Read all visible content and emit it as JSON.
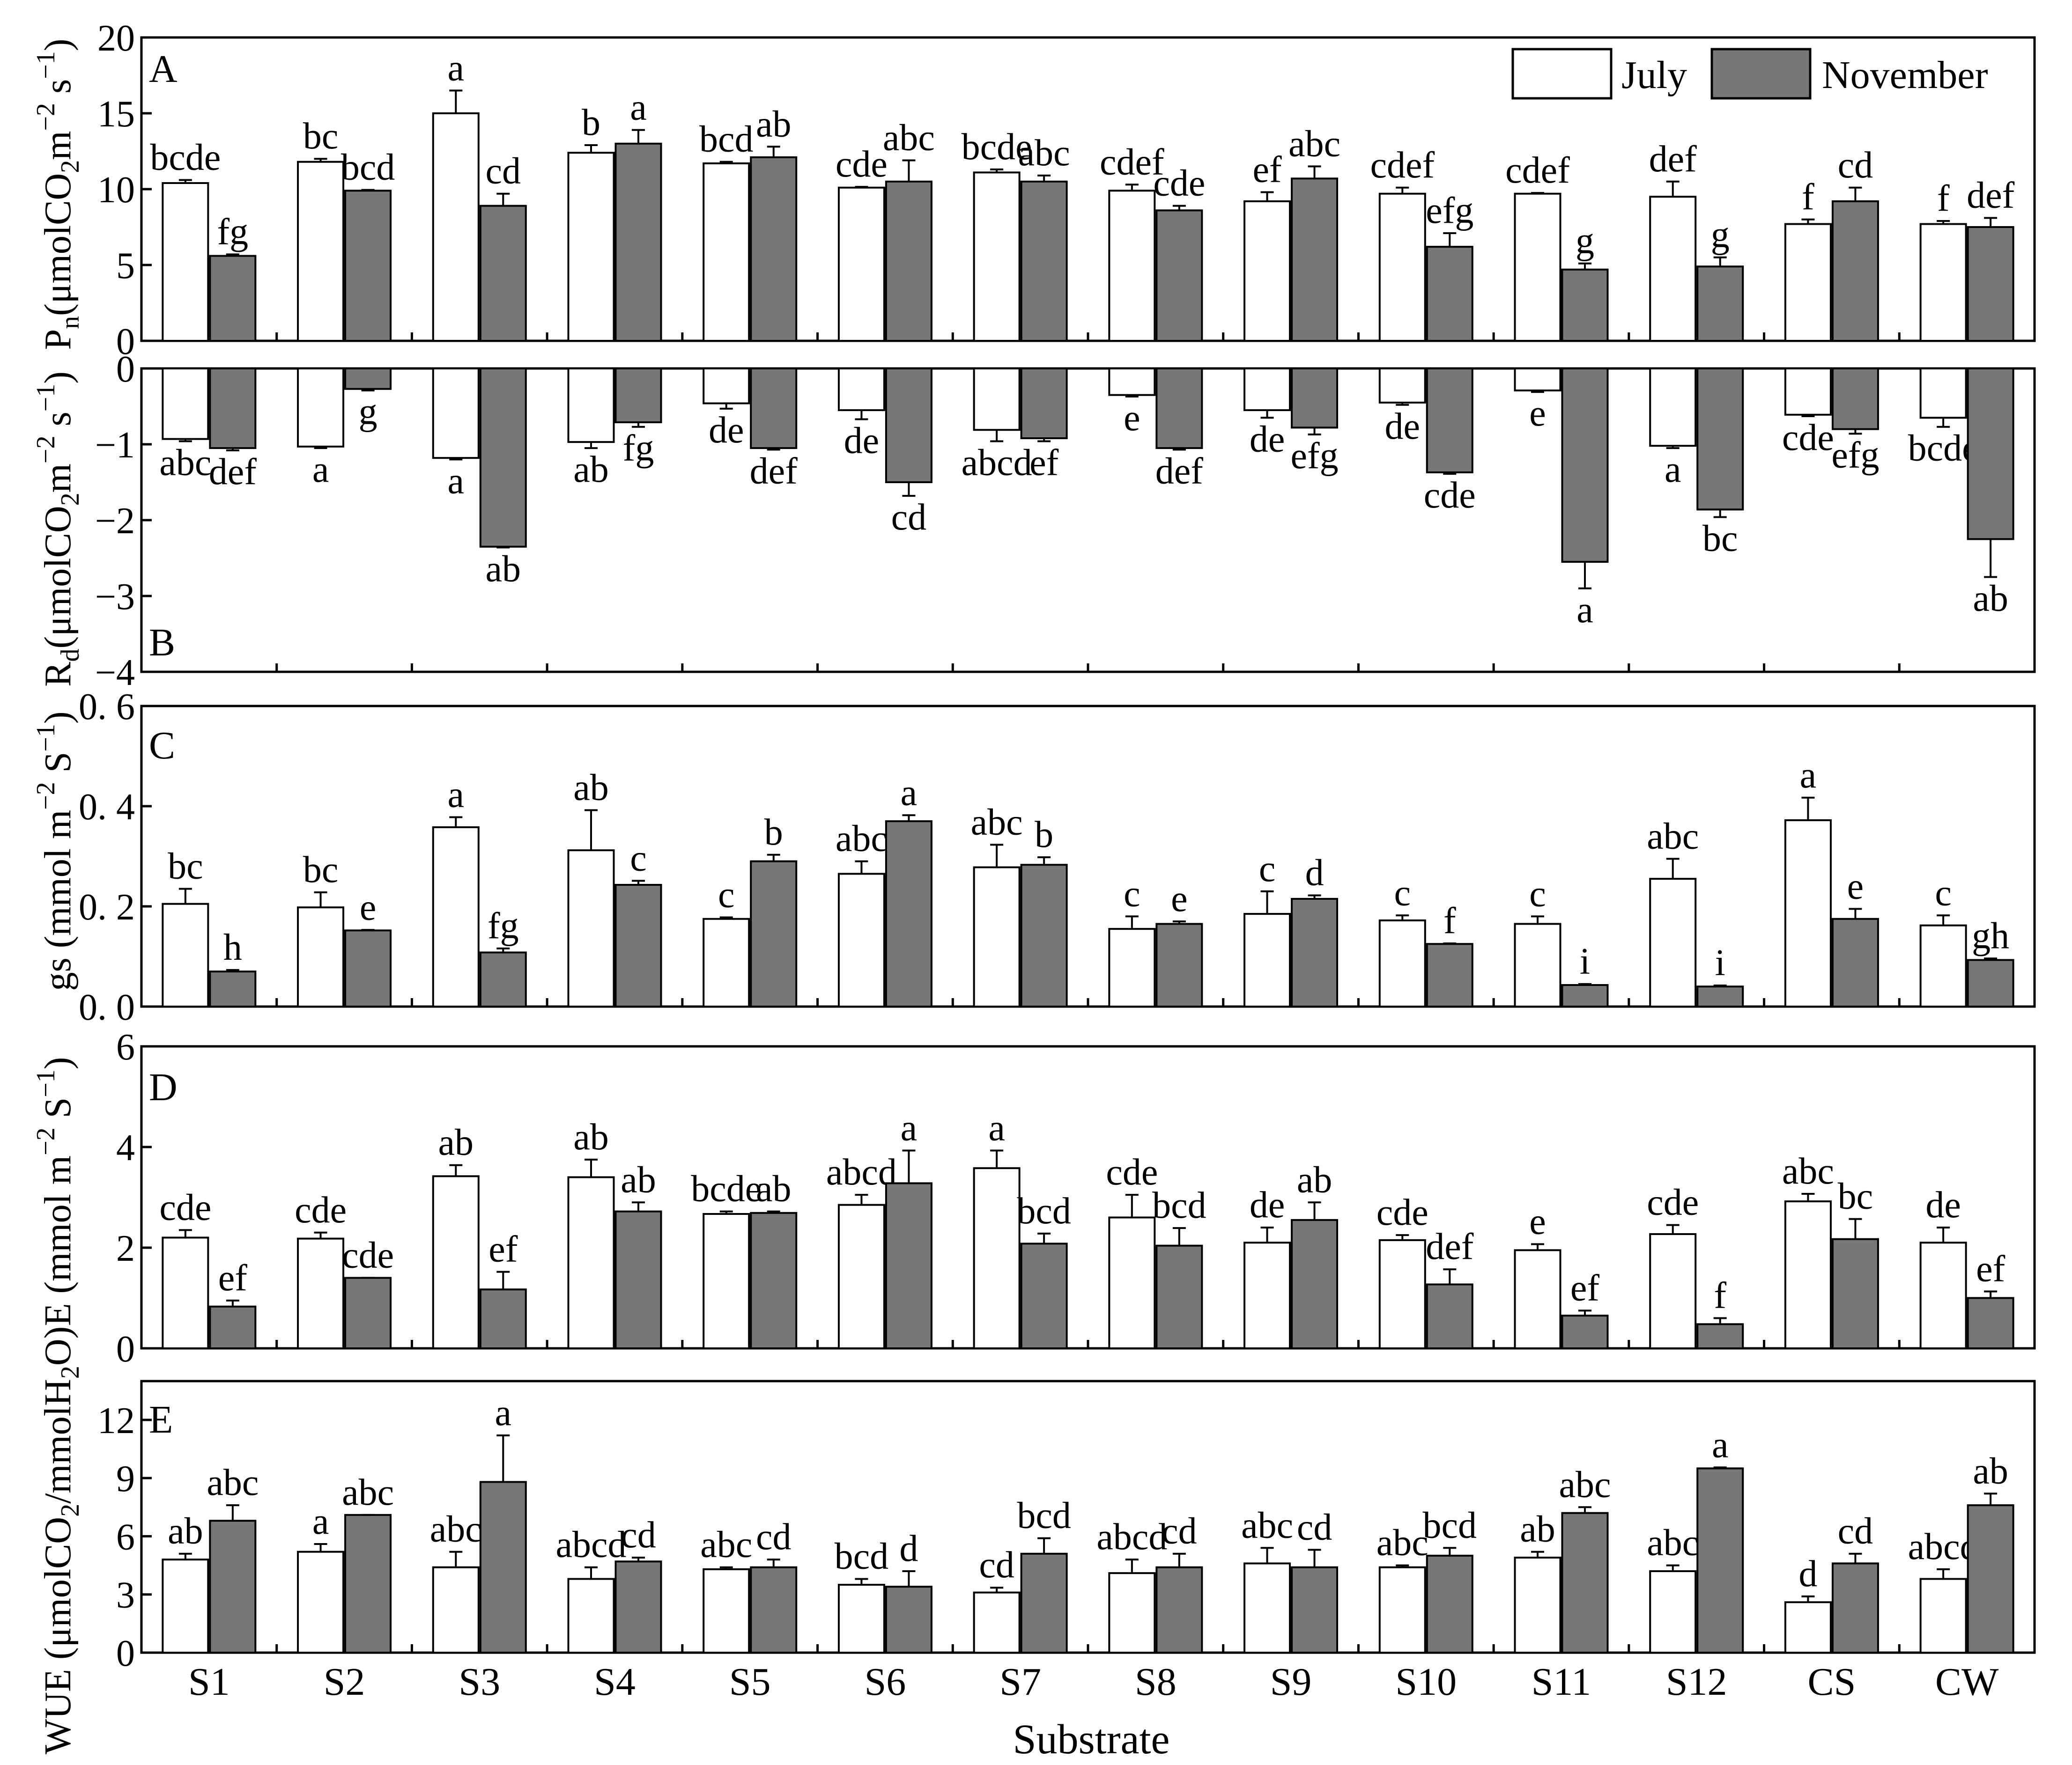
{
  "figure": {
    "x_axis_label": "Substrate",
    "legend": {
      "july": "July",
      "november": "November"
    },
    "colors": {
      "july_fill": "#ffffff",
      "november_fill": "#777777",
      "axis": "#000000"
    }
  },
  "chart_data": [
    {
      "type": "bar",
      "panel": "A",
      "ylabel": "Pn (μmolCO2 m-2 s-1)",
      "ylim": [
        0,
        20
      ],
      "yticks": [
        0,
        5,
        10,
        15,
        20
      ],
      "categories": [
        "S1",
        "S2",
        "S3",
        "S4",
        "S5",
        "S6",
        "S7",
        "S8",
        "S9",
        "S10",
        "S11",
        "S12",
        "CS",
        "CW"
      ],
      "series": [
        {
          "name": "July",
          "values": [
            10.4,
            11.8,
            15.0,
            12.4,
            11.7,
            10.1,
            11.1,
            9.9,
            9.2,
            9.7,
            9.7,
            9.5,
            7.7,
            7.7
          ],
          "errors": [
            0.2,
            0.2,
            1.5,
            0.5,
            0.1,
            0.05,
            0.2,
            0.4,
            0.6,
            0.4,
            0.05,
            1.0,
            0.3,
            0.2
          ],
          "labels": [
            "bcde",
            "bc",
            "a",
            "b",
            "bcd",
            "cde",
            "bcde",
            "cdef",
            "ef",
            "cdef",
            "cdef",
            "def",
            "f",
            "f"
          ]
        },
        {
          "name": "November",
          "values": [
            5.6,
            9.9,
            8.9,
            13.0,
            12.1,
            10.5,
            10.5,
            8.6,
            10.7,
            6.2,
            4.7,
            4.9,
            9.2,
            7.5
          ],
          "errors": [
            0.1,
            0.05,
            0.8,
            0.9,
            0.7,
            1.4,
            0.4,
            0.3,
            0.8,
            0.9,
            0.4,
            0.6,
            0.9,
            0.6
          ],
          "labels": [
            "fg",
            "bcd",
            "cd",
            "a",
            "ab",
            "abc",
            "abc",
            "cde",
            "abc",
            "efg",
            "g",
            "g",
            "cd",
            "def"
          ]
        }
      ]
    },
    {
      "type": "bar",
      "panel": "B",
      "ylabel": "Rd (μmolCO2 m-2 s-1)",
      "ylim": [
        -4,
        0
      ],
      "yticks": [
        -4,
        -3,
        -2,
        -1,
        0
      ],
      "categories": [
        "S1",
        "S2",
        "S3",
        "S4",
        "S5",
        "S6",
        "S7",
        "S8",
        "S9",
        "S10",
        "S11",
        "S12",
        "CS",
        "CW"
      ],
      "series": [
        {
          "name": "July",
          "values": [
            -0.93,
            -1.03,
            -1.18,
            -0.97,
            -0.46,
            -0.55,
            -0.81,
            -0.35,
            -0.55,
            -0.45,
            -0.29,
            -1.02,
            -0.61,
            -0.65
          ],
          "errors": [
            0.03,
            0.02,
            0.02,
            0.08,
            0.07,
            0.12,
            0.15,
            0.02,
            0.1,
            0.03,
            0.02,
            0.03,
            0.02,
            0.12
          ],
          "labels": [
            "abc",
            "a",
            "a",
            "ab",
            "de",
            "de",
            "abcd",
            "e",
            "de",
            "de",
            "e",
            "a",
            "cde",
            "bcde"
          ]
        },
        {
          "name": "November",
          "values": [
            -1.05,
            -0.27,
            -2.35,
            -0.71,
            -1.05,
            -1.5,
            -0.92,
            -1.05,
            -0.78,
            -1.37,
            -2.55,
            -1.86,
            -0.8,
            -2.25
          ],
          "errors": [
            0.03,
            0.02,
            0.01,
            0.06,
            0.02,
            0.18,
            0.04,
            0.02,
            0.09,
            0.02,
            0.35,
            0.1,
            0.06,
            0.5
          ],
          "labels": [
            "def",
            "g",
            "ab",
            "fg",
            "def",
            "cd",
            "ef",
            "def",
            "efg",
            "cde",
            "a",
            "bc",
            "efg",
            "ab"
          ]
        }
      ]
    },
    {
      "type": "bar",
      "panel": "C",
      "ylabel": "gs (mmol m-2 S-1)",
      "ylim": [
        0,
        0.6
      ],
      "yticks": [
        0.0,
        0.2,
        0.4,
        0.6
      ],
      "tick_labels": [
        "0. 0",
        "0. 2",
        "0. 4",
        "0. 6"
      ],
      "categories": [
        "S1",
        "S2",
        "S3",
        "S4",
        "S5",
        "S6",
        "S7",
        "S8",
        "S9",
        "S10",
        "S11",
        "S12",
        "CS",
        "CW"
      ],
      "series": [
        {
          "name": "July",
          "values": [
            0.205,
            0.198,
            0.358,
            0.312,
            0.175,
            0.265,
            0.278,
            0.155,
            0.185,
            0.172,
            0.165,
            0.255,
            0.372,
            0.162
          ],
          "errors": [
            0.03,
            0.03,
            0.02,
            0.08,
            0.003,
            0.025,
            0.045,
            0.025,
            0.045,
            0.01,
            0.015,
            0.04,
            0.045,
            0.02
          ],
          "labels": [
            "bc",
            "bc",
            "a",
            "ab",
            "c",
            "abc",
            "abc",
            "c",
            "c",
            "c",
            "c",
            "abc",
            "a",
            "c"
          ]
        },
        {
          "name": "November",
          "values": [
            0.07,
            0.152,
            0.108,
            0.243,
            0.29,
            0.37,
            0.283,
            0.165,
            0.215,
            0.125,
            0.043,
            0.04,
            0.175,
            0.093
          ],
          "errors": [
            0.003,
            0.001,
            0.008,
            0.008,
            0.013,
            0.012,
            0.015,
            0.005,
            0.007,
            0.001,
            0.002,
            0.002,
            0.02,
            0.003
          ],
          "labels": [
            "h",
            "e",
            "fg",
            "c",
            "b",
            "a",
            "b",
            "e",
            "d",
            "f",
            "i",
            "i",
            "e",
            "gh"
          ]
        }
      ]
    },
    {
      "type": "bar",
      "panel": "D",
      "ylabel": "E (mmol m-2 S-1)",
      "ylim": [
        0,
        6
      ],
      "yticks": [
        0,
        2,
        4,
        6
      ],
      "categories": [
        "S1",
        "S2",
        "S3",
        "S4",
        "S5",
        "S6",
        "S7",
        "S8",
        "S9",
        "S10",
        "S11",
        "S12",
        "CS",
        "CW"
      ],
      "series": [
        {
          "name": "July",
          "values": [
            2.2,
            2.18,
            3.42,
            3.4,
            2.67,
            2.85,
            3.58,
            2.6,
            2.1,
            2.15,
            1.95,
            2.27,
            2.92,
            2.1
          ],
          "errors": [
            0.15,
            0.12,
            0.22,
            0.35,
            0.05,
            0.2,
            0.35,
            0.45,
            0.3,
            0.1,
            0.12,
            0.18,
            0.15,
            0.3
          ],
          "labels": [
            "cde",
            "cde",
            "ab",
            "ab",
            "bcde",
            "abcd",
            "a",
            "cde",
            "de",
            "cde",
            "e",
            "cde",
            "abc",
            "de"
          ]
        },
        {
          "name": "November",
          "values": [
            0.83,
            1.4,
            1.17,
            2.72,
            2.69,
            3.28,
            2.08,
            2.04,
            2.55,
            1.27,
            0.65,
            0.48,
            2.17,
            1.0
          ],
          "errors": [
            0.12,
            0.001,
            0.35,
            0.18,
            0.03,
            0.65,
            0.2,
            0.35,
            0.35,
            0.3,
            0.1,
            0.12,
            0.4,
            0.13
          ],
          "labels": [
            "ef",
            "cde",
            "ef",
            "ab",
            "ab",
            "a",
            "bcd",
            "bcd",
            "ab",
            "def",
            "ef",
            "f",
            "bc",
            "ef"
          ]
        }
      ]
    },
    {
      "type": "bar",
      "panel": "E",
      "ylabel": "WUE (μmolCO2/mmolH2O)",
      "ylim": [
        0,
        14
      ],
      "yticks": [
        0,
        3,
        6,
        9,
        12
      ],
      "categories": [
        "S1",
        "S2",
        "S3",
        "S4",
        "S5",
        "S6",
        "S7",
        "S8",
        "S9",
        "S10",
        "S11",
        "S12",
        "CS",
        "CW"
      ],
      "series": [
        {
          "name": "July",
          "values": [
            4.8,
            5.2,
            4.4,
            3.8,
            4.3,
            3.5,
            3.1,
            4.1,
            4.6,
            4.4,
            4.9,
            4.2,
            2.6,
            3.8
          ],
          "errors": [
            0.3,
            0.4,
            0.8,
            0.6,
            0.1,
            0.3,
            0.25,
            0.7,
            0.8,
            0.1,
            0.3,
            0.3,
            0.3,
            0.5
          ],
          "labels": [
            "ab",
            "a",
            "abc",
            "abcd",
            "abc",
            "bcd",
            "cd",
            "abcd",
            "abc",
            "abc",
            "ab",
            "abc",
            "d",
            "abcd"
          ]
        },
        {
          "name": "November",
          "values": [
            6.8,
            7.1,
            8.8,
            4.7,
            4.4,
            3.4,
            5.1,
            4.4,
            4.4,
            5.0,
            7.2,
            9.5,
            4.6,
            7.6
          ],
          "errors": [
            0.8,
            0.001,
            2.4,
            0.2,
            0.4,
            0.8,
            0.8,
            0.7,
            0.9,
            0.4,
            0.3,
            0.05,
            0.5,
            0.6
          ],
          "labels": [
            "abc",
            "abc",
            "a",
            "cd",
            "cd",
            "d",
            "bcd",
            "cd",
            "cd",
            "bcd",
            "abc",
            "a",
            "cd",
            "ab"
          ]
        }
      ]
    }
  ]
}
